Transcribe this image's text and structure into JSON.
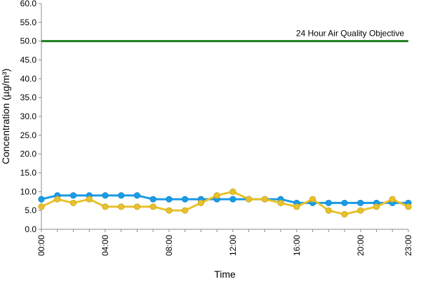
{
  "chart_data": {
    "type": "line",
    "xlabel": "Time",
    "ylabel": "Concentration (µg/m³)",
    "ylim": [
      0,
      60
    ],
    "y_ticks": [
      "0.0",
      "5.0",
      "10.0",
      "15.0",
      "20.0",
      "25.0",
      "30.0",
      "35.0",
      "40.0",
      "45.0",
      "50.0",
      "55.0",
      "60.0"
    ],
    "x_tick_labels": [
      {
        "hour": 0,
        "label": "00:00"
      },
      {
        "hour": 4,
        "label": "04:00"
      },
      {
        "hour": 8,
        "label": "08:00"
      },
      {
        "hour": 12,
        "label": "12:00"
      },
      {
        "hour": 16,
        "label": "16:00"
      },
      {
        "hour": 20,
        "label": "20:00"
      },
      {
        "hour": 23,
        "label": "23:00"
      }
    ],
    "x": [
      0,
      1,
      2,
      3,
      4,
      5,
      6,
      7,
      8,
      9,
      10,
      11,
      12,
      13,
      14,
      15,
      16,
      17,
      18,
      19,
      20,
      21,
      22,
      23
    ],
    "series": [
      {
        "color": "#1a9be6",
        "values": [
          8,
          9,
          9,
          9,
          9,
          9,
          9,
          8,
          8,
          8,
          8,
          8,
          8,
          8,
          8,
          8,
          7,
          7,
          7,
          7,
          7,
          7,
          7,
          7
        ]
      },
      {
        "color": "#e9c22b",
        "values": [
          6,
          8,
          7,
          8,
          6,
          6,
          6,
          6,
          5,
          5,
          7,
          9,
          10,
          8,
          8,
          7,
          6,
          8,
          5,
          4,
          5,
          6,
          8,
          6
        ]
      }
    ],
    "reference_line": {
      "value": 50,
      "label": "24 Hour Air Quality Objective",
      "color": "#1e7d1e"
    },
    "grid": false
  }
}
